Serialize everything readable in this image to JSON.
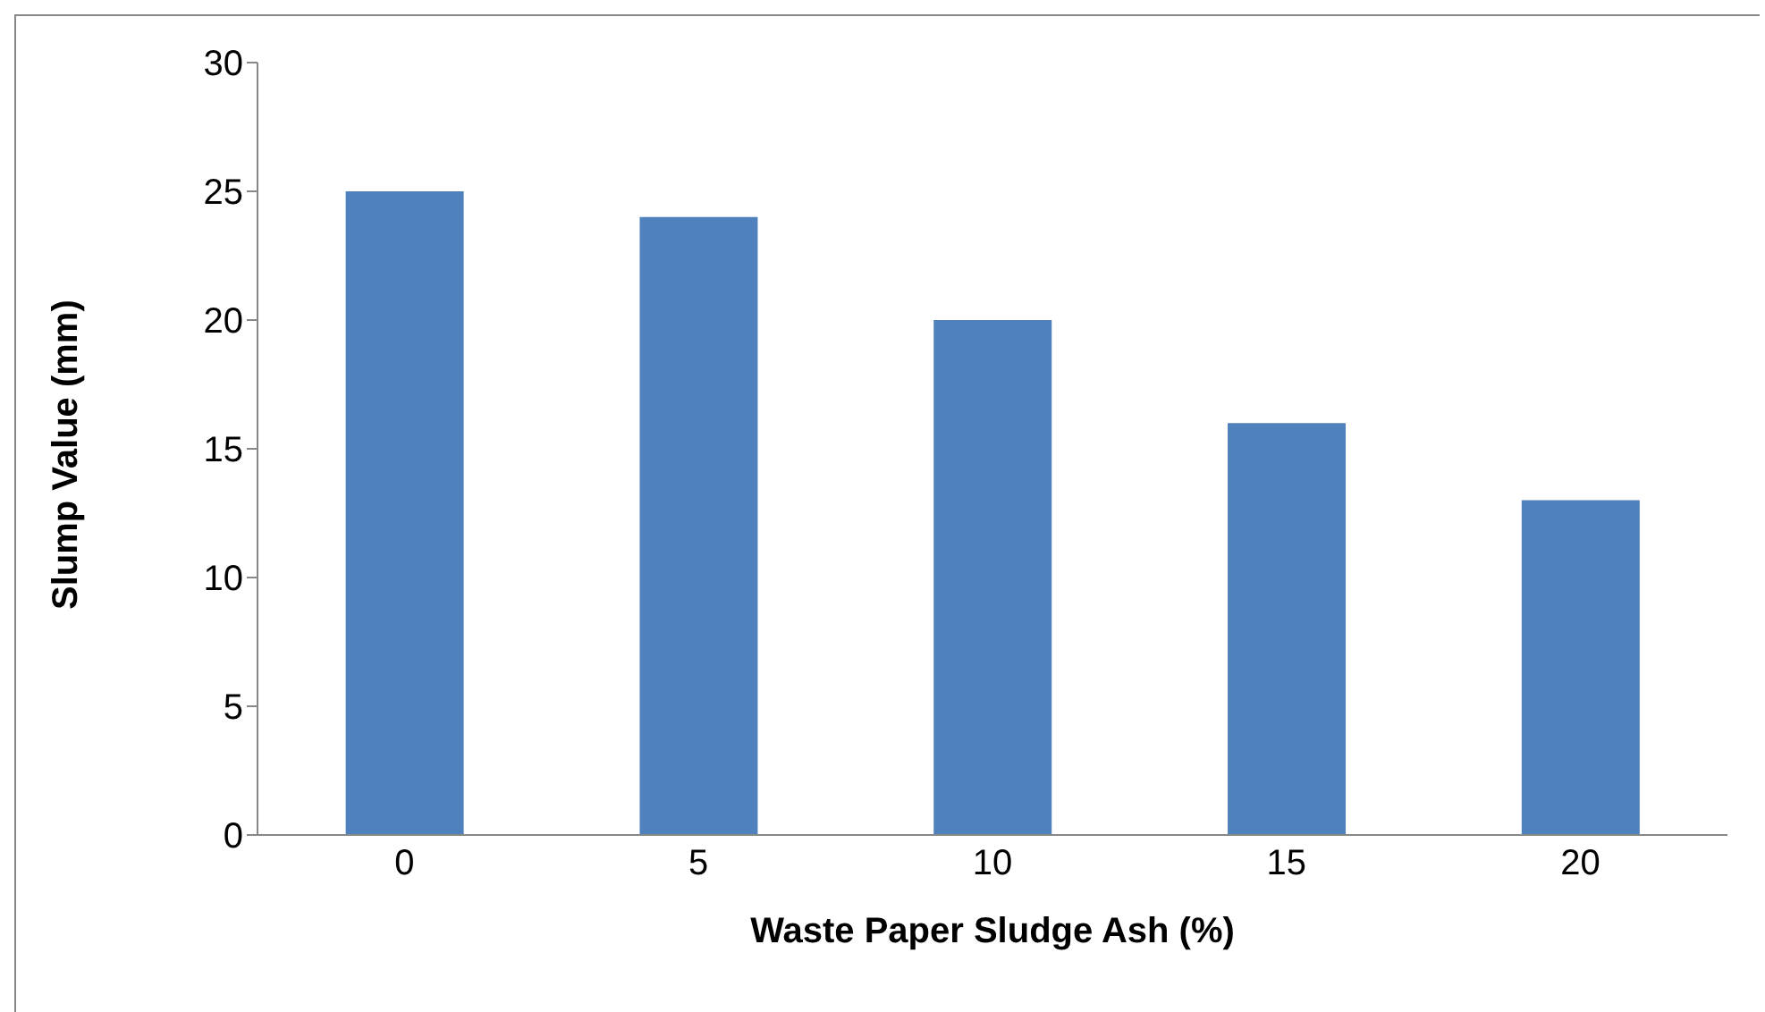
{
  "chart_data": {
    "type": "bar",
    "xlabel": "Waste Paper Sludge Ash (%)",
    "ylabel": "Slump Value (mm)",
    "categories": [
      "0",
      "5",
      "10",
      "15",
      "20"
    ],
    "values": [
      25,
      24,
      20,
      16,
      13
    ],
    "color": "#4f81bd",
    "ylim": [
      0,
      30
    ],
    "yticks": [
      0,
      5,
      10,
      15,
      20,
      25,
      30
    ],
    "grid": false,
    "legend": false
  }
}
